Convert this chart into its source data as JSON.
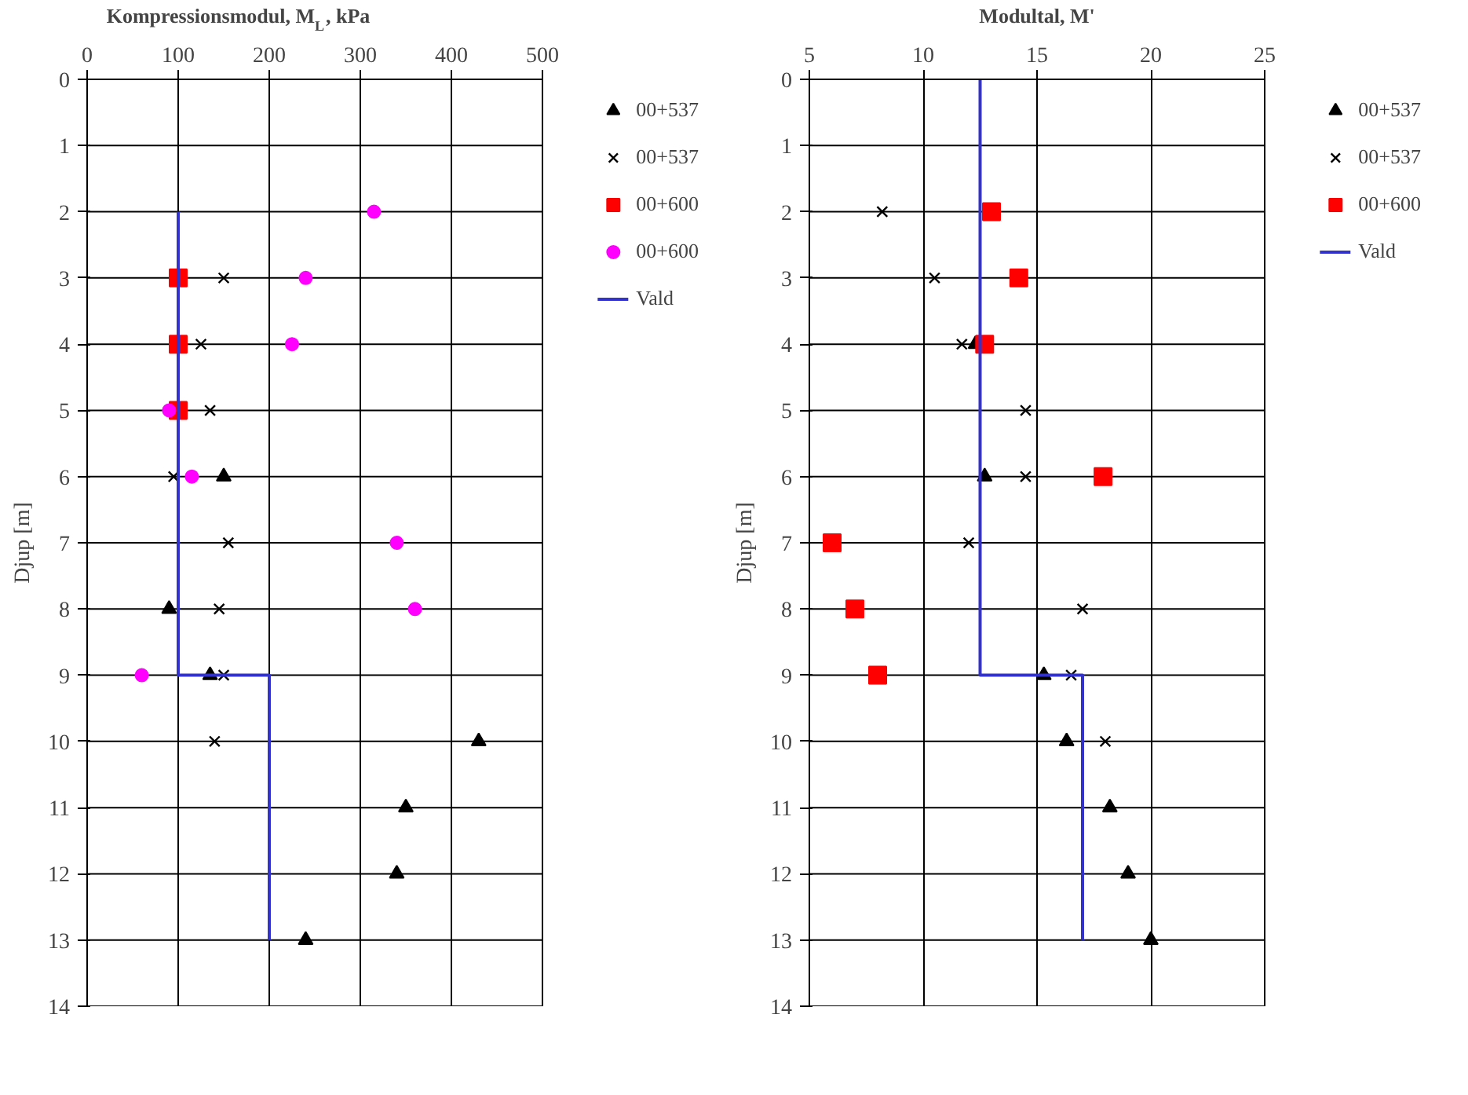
{
  "chart_data": [
    {
      "type": "scatter",
      "title": "Kompressionsmodul, M$_{L}$, kPa",
      "ylabel": "Djup [m]",
      "xlim": [
        0,
        500
      ],
      "xticks": [
        0,
        100,
        200,
        300,
        400,
        500
      ],
      "ylim": [
        14,
        0
      ],
      "yticks": [
        0,
        1,
        2,
        3,
        4,
        5,
        6,
        7,
        8,
        9,
        10,
        11,
        12,
        13,
        14
      ],
      "grid": true,
      "legend": "right",
      "series": [
        {
          "name": "00+537",
          "color": "#000000",
          "marker": "triangle",
          "x": [
            150,
            90,
            135,
            430,
            350,
            340,
            240
          ],
          "values": [
            6,
            8,
            9,
            10,
            11,
            12,
            13
          ]
        },
        {
          "name": "00+537",
          "color": "#000000",
          "marker": "cross",
          "x": [
            150,
            125,
            135,
            95,
            155,
            145,
            150,
            140
          ],
          "values": [
            3,
            4,
            5,
            6,
            7,
            8,
            9,
            10
          ]
        },
        {
          "name": "00+600",
          "color": "#ff0000",
          "marker": "square",
          "x": [
            100,
            100,
            100
          ],
          "values": [
            3,
            4,
            5
          ]
        },
        {
          "name": "00+600",
          "color": "#ff00ff",
          "marker": "circle",
          "x": [
            315,
            240,
            225,
            90,
            115,
            340,
            360,
            60
          ],
          "values": [
            2,
            3,
            4,
            5,
            6,
            7,
            8,
            9
          ]
        },
        {
          "name": "Vald",
          "type": "line",
          "color": "#3333cc",
          "marker": "none",
          "x": [
            100,
            100,
            200,
            200
          ],
          "values": [
            2,
            9,
            9,
            13
          ]
        }
      ]
    },
    {
      "type": "scatter",
      "title": "Modultal, M'",
      "ylabel": "Djup [m]",
      "xlim": [
        5,
        25
      ],
      "xticks": [
        5,
        10,
        15,
        20,
        25
      ],
      "ylim": [
        14,
        0
      ],
      "yticks": [
        0,
        1,
        2,
        3,
        4,
        5,
        6,
        7,
        8,
        9,
        10,
        11,
        12,
        13,
        14
      ],
      "grid": true,
      "legend": "right",
      "series": [
        {
          "name": "00+537",
          "color": "#000000",
          "marker": "triangle",
          "x": [
            12.3,
            12.7,
            15.3,
            16.3,
            18.2,
            19.0,
            20.0
          ],
          "values": [
            4,
            6,
            9,
            10,
            11,
            12,
            13
          ]
        },
        {
          "name": "00+537",
          "color": "#000000",
          "marker": "cross",
          "x": [
            8.2,
            10.5,
            11.7,
            14.5,
            14.5,
            12.0,
            17.0,
            16.5,
            18.0
          ],
          "values": [
            2,
            3,
            4,
            5,
            6,
            7,
            8,
            9,
            10
          ]
        },
        {
          "name": "00+600",
          "color": "#ff0000",
          "marker": "square",
          "x": [
            13.0,
            14.2,
            12.7,
            17.9,
            6.0,
            7.0,
            8.0
          ],
          "values": [
            2,
            3,
            4,
            6,
            7,
            8,
            9
          ]
        },
        {
          "name": "Vald",
          "type": "line",
          "color": "#3333cc",
          "marker": "none",
          "x": [
            12.5,
            12.5,
            17,
            17
          ],
          "values": [
            0,
            9,
            9,
            13
          ]
        }
      ]
    }
  ]
}
